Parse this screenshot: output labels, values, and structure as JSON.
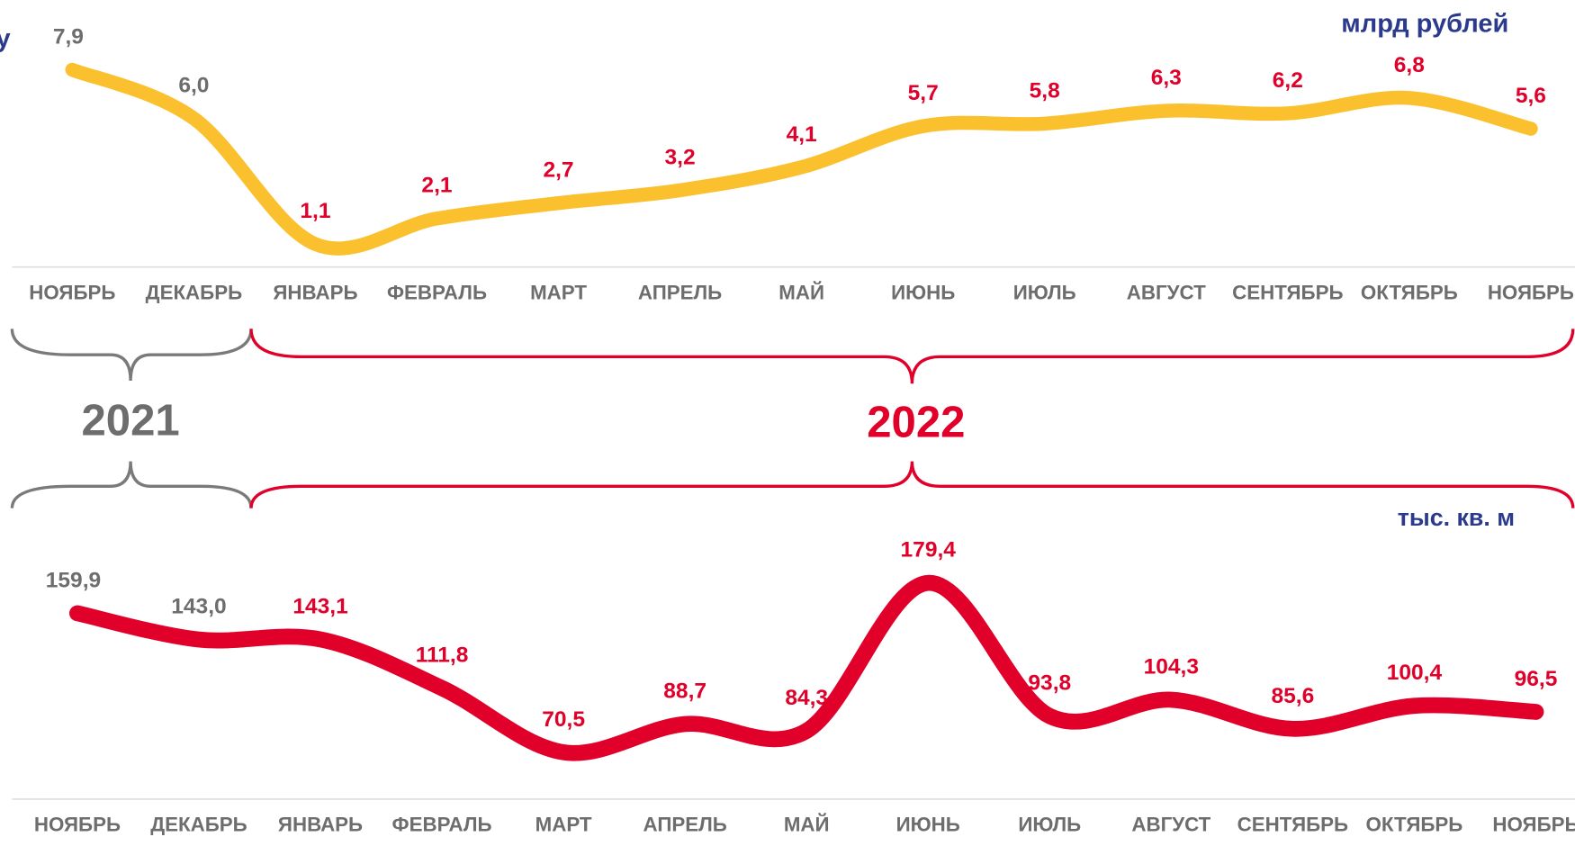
{
  "title": "у",
  "periods": [
    {
      "label": "2021",
      "color": "#6d6d6d"
    },
    {
      "label": "2022",
      "color": "#e0002a"
    }
  ],
  "chart_data": [
    {
      "type": "line",
      "unit": "млрд рублей",
      "categories": [
        "НОЯБРЬ",
        "ДЕКАБРЬ",
        "ЯНВАРЬ",
        "ФЕВРАЛЬ",
        "МАРТ",
        "АПРЕЛЬ",
        "МАЙ",
        "ИЮНЬ",
        "ИЮЛЬ",
        "АВГУСТ",
        "СЕНТЯБРЬ",
        "ОКТЯБРЬ",
        "НОЯБРЬ"
      ],
      "series": [
        {
          "color": "#fbc02d",
          "values": [
            7.9,
            6.0,
            1.1,
            2.1,
            2.7,
            3.2,
            4.1,
            5.7,
            5.8,
            6.3,
            6.2,
            6.8,
            5.6
          ],
          "value_labels": [
            "7,9",
            "6,0",
            "1,1",
            "2,1",
            "2,7",
            "3,2",
            "4,1",
            "5,7",
            "5,8",
            "6,3",
            "6,2",
            "6,8",
            "5,6"
          ],
          "value_label_colors": [
            "#6d6d6d",
            "#6d6d6d",
            "#e0002a",
            "#e0002a",
            "#e0002a",
            "#e0002a",
            "#e0002a",
            "#e0002a",
            "#e0002a",
            "#e0002a",
            "#e0002a",
            "#e0002a",
            "#e0002a"
          ]
        }
      ]
    },
    {
      "type": "line",
      "unit": "тыс. кв. м",
      "categories": [
        "НОЯБРЬ",
        "ДЕКАБРЬ",
        "ЯНВАРЬ",
        "ФЕВРАЛЬ",
        "МАРТ",
        "АПРЕЛЬ",
        "МАЙ",
        "ИЮНЬ",
        "ИЮЛЬ",
        "АВГУСТ",
        "СЕНТЯБРЬ",
        "ОКТЯБРЬ",
        "НОЯБРЬ"
      ],
      "series": [
        {
          "color": "#e0002a",
          "values": [
            159.9,
            143.0,
            143.1,
            111.8,
            70.5,
            88.7,
            84.3,
            179.4,
            93.8,
            104.3,
            85.6,
            100.4,
            96.5
          ],
          "value_labels": [
            "159,9",
            "143,0",
            "143,1",
            "111,8",
            "70,5",
            "88,7",
            "84,3",
            "179,4",
            "93,8",
            "104,3",
            "85,6",
            "100,4",
            "96,5"
          ],
          "value_label_colors": [
            "#6d6d6d",
            "#6d6d6d",
            "#e0002a",
            "#e0002a",
            "#e0002a",
            "#e0002a",
            "#e0002a",
            "#e0002a",
            "#e0002a",
            "#e0002a",
            "#e0002a",
            "#e0002a",
            "#e0002a"
          ]
        }
      ]
    }
  ]
}
